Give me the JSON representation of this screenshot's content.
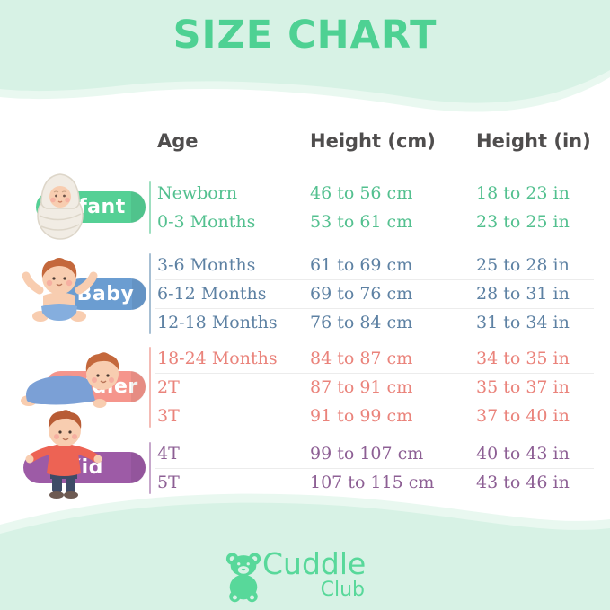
{
  "title": "SIZE CHART",
  "brand": {
    "word1": "Cuddle",
    "word2": "Club"
  },
  "colors": {
    "background_mint": "#d7f2e5",
    "wave_accent": "#e9f8f0",
    "title_green": "#4ed193",
    "header_text": "#4f4d4d",
    "divider": "#ececec",
    "logo_green": "#58d89a"
  },
  "figures": {
    "infant": "swaddled-baby-illustration",
    "baby": "sitting-baby-illustration",
    "toddler": "crawling-toddler-illustration",
    "kid": "standing-kid-illustration",
    "logo": "teddy-bear-icon"
  },
  "table": {
    "headers": [
      "Age",
      "Height (cm)",
      "Height (in)"
    ],
    "groups": [
      {
        "label": "Infant",
        "text_color": "#53c08f",
        "pill_color": "#55d095",
        "line_color": "#7ed4ab",
        "rows": [
          [
            "Newborn",
            "46 to 56 cm",
            "18 to 23 in"
          ],
          [
            "0-3 Months",
            "53 to 61 cm",
            "23 to 25 in"
          ]
        ]
      },
      {
        "label": "Baby",
        "text_color": "#5d81a3",
        "pill_color": "#6b9dd1",
        "line_color": "#8aa9c4",
        "rows": [
          [
            "3-6 Months",
            "61 to 69 cm",
            "25 to 28 in"
          ],
          [
            "6-12 Months",
            "69 to 76 cm",
            "28 to 31 in"
          ],
          [
            "12-18 Months",
            "76 to 84 cm",
            "31 to 34 in"
          ]
        ]
      },
      {
        "label": "Toddler",
        "text_color": "#ea837b",
        "pill_color": "#f5958c",
        "line_color": "#f0a49c",
        "rows": [
          [
            "18-24 Months",
            "84 to 87 cm",
            "34 to 35 in"
          ],
          [
            "2T",
            "87 to 91 cm",
            "35 to 37 in"
          ],
          [
            "3T",
            "91 to 99 cm",
            "37 to 40 in"
          ]
        ]
      },
      {
        "label": "Kid",
        "text_color": "#8d5f94",
        "pill_color": "#9d5ba6",
        "line_color": "#b389b9",
        "rows": [
          [
            "4T",
            "99 to 107 cm",
            "40 to 43 in"
          ],
          [
            "5T",
            "107 to 115 cm",
            "43 to 46 in"
          ]
        ]
      }
    ]
  },
  "chart_data": {
    "type": "table",
    "title": "SIZE CHART",
    "columns": [
      "Age",
      "Height (cm)",
      "Height (in)"
    ],
    "groups": [
      {
        "category": "Infant",
        "rows": [
          [
            "Newborn",
            "46 to 56 cm",
            "18 to 23 in"
          ],
          [
            "0-3 Months",
            "53 to 61 cm",
            "23 to 25 in"
          ]
        ]
      },
      {
        "category": "Baby",
        "rows": [
          [
            "3-6 Months",
            "61 to 69 cm",
            "25 to 28 in"
          ],
          [
            "6-12 Months",
            "69 to 76 cm",
            "28 to 31 in"
          ],
          [
            "12-18 Months",
            "76 to 84 cm",
            "31 to 34 in"
          ]
        ]
      },
      {
        "category": "Toddler",
        "rows": [
          [
            "18-24 Months",
            "84 to 87 cm",
            "34 to 35 in"
          ],
          [
            "2T",
            "87 to 91 cm",
            "35 to 37 in"
          ],
          [
            "3T",
            "91 to 99 cm",
            "37 to 40 in"
          ]
        ]
      },
      {
        "category": "Kid",
        "rows": [
          [
            "4T",
            "99 to 107 cm",
            "40 to 43 in"
          ],
          [
            "5T",
            "107 to 115 cm",
            "43 to 46 in"
          ]
        ]
      }
    ]
  }
}
